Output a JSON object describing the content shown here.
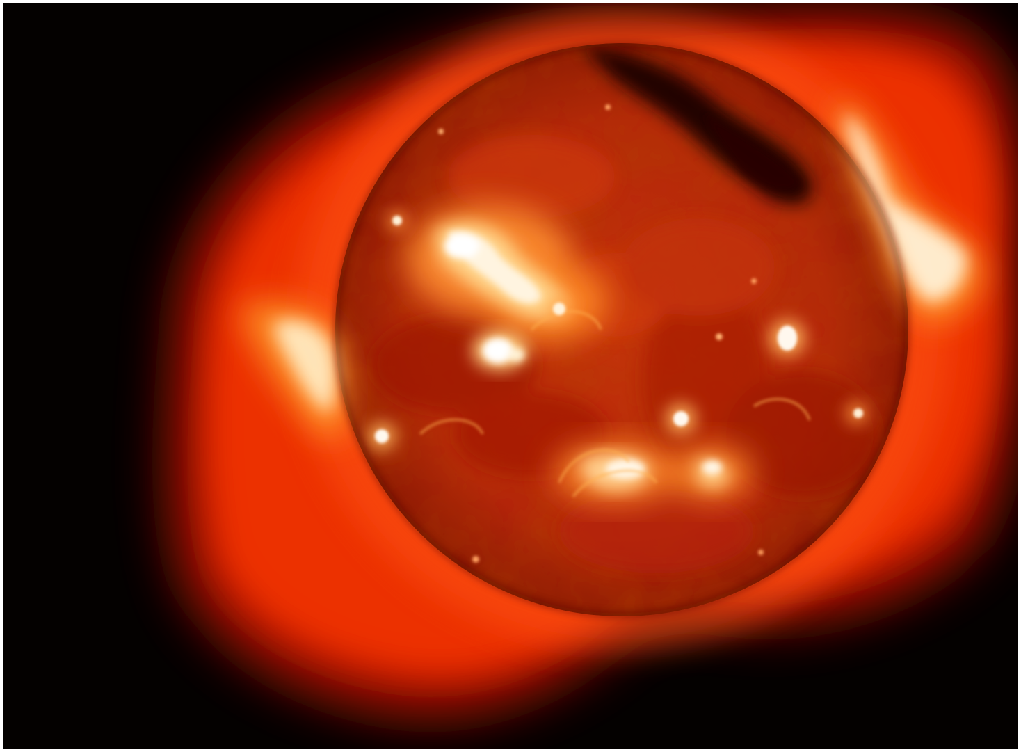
{
  "image": {
    "subject": "x-ray-sun",
    "colors": {
      "background": "#040100",
      "corona_outer": "#c81400",
      "corona_mid": "#ff4a08",
      "disk_base": "#b91d06",
      "disk_edge": "#6e0a00",
      "coronal_hole": "#160200",
      "active_region_core": "#fff6e6",
      "active_region_glow": "#ffb44a"
    },
    "features": [
      "corona-glow",
      "solar-disk",
      "coronal-hole",
      "limb-jets",
      "active-regions",
      "bright-points"
    ]
  }
}
